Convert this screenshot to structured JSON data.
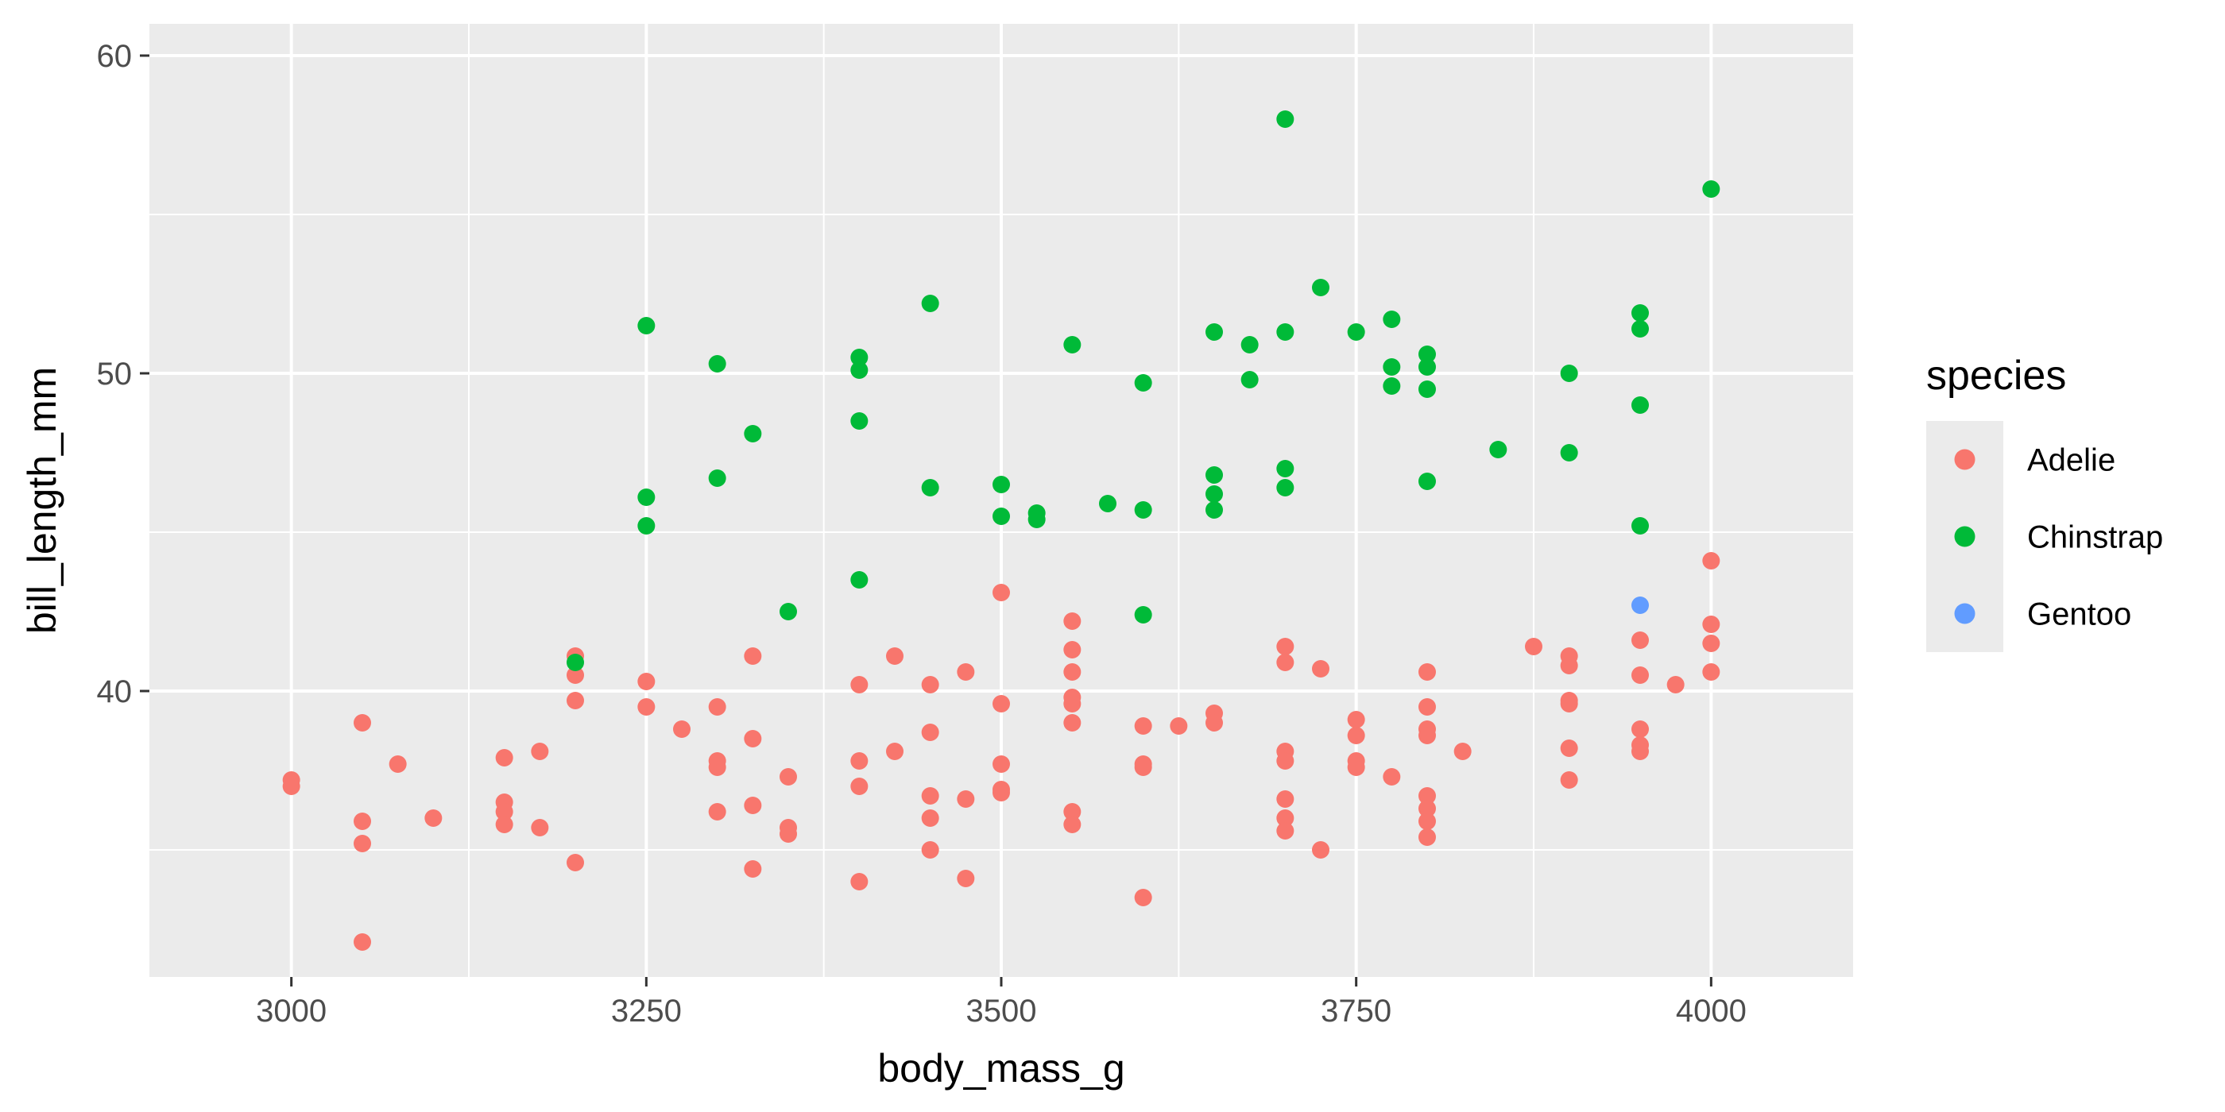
{
  "chart_data": {
    "type": "scatter",
    "title": "",
    "xlabel": "body_mass_g",
    "ylabel": "bill_length_mm",
    "xlim": [
      2900,
      4100
    ],
    "ylim": [
      31,
      61
    ],
    "x_ticks": [
      3000,
      3250,
      3500,
      3750,
      4000
    ],
    "y_ticks": [
      40,
      50,
      60
    ],
    "grid": true,
    "legend_title": "species",
    "legend_position": "right",
    "colors": {
      "Adelie": "#F8766D",
      "Chinstrap": "#00BA38",
      "Gentoo": "#619CFF",
      "panel": "#EBEBEB",
      "grid": "#FFFFFF"
    },
    "series": [
      {
        "name": "Adelie",
        "points": [
          [
            3000,
            37.2
          ],
          [
            3000,
            37.0
          ],
          [
            3050,
            39.0
          ],
          [
            3050,
            35.9
          ],
          [
            3050,
            35.2
          ],
          [
            3050,
            32.1
          ],
          [
            3075,
            37.7
          ],
          [
            3100,
            36.0
          ],
          [
            3150,
            37.9
          ],
          [
            3150,
            36.5
          ],
          [
            3150,
            36.2
          ],
          [
            3150,
            35.8
          ],
          [
            3175,
            38.1
          ],
          [
            3175,
            35.7
          ],
          [
            3200,
            41.1
          ],
          [
            3200,
            40.5
          ],
          [
            3200,
            39.7
          ],
          [
            3200,
            34.6
          ],
          [
            3250,
            40.3
          ],
          [
            3250,
            39.5
          ],
          [
            3275,
            38.8
          ],
          [
            3300,
            39.5
          ],
          [
            3300,
            37.8
          ],
          [
            3300,
            37.6
          ],
          [
            3300,
            36.2
          ],
          [
            3325,
            41.1
          ],
          [
            3325,
            38.5
          ],
          [
            3325,
            36.4
          ],
          [
            3325,
            34.4
          ],
          [
            3350,
            37.3
          ],
          [
            3350,
            35.7
          ],
          [
            3350,
            35.5
          ],
          [
            3400,
            40.2
          ],
          [
            3400,
            37.8
          ],
          [
            3400,
            37.0
          ],
          [
            3400,
            34.0
          ],
          [
            3425,
            41.1
          ],
          [
            3425,
            38.1
          ],
          [
            3450,
            40.2
          ],
          [
            3450,
            38.7
          ],
          [
            3450,
            36.7
          ],
          [
            3450,
            36.0
          ],
          [
            3450,
            35.0
          ],
          [
            3475,
            40.6
          ],
          [
            3475,
            36.6
          ],
          [
            3475,
            34.1
          ],
          [
            3500,
            43.1
          ],
          [
            3500,
            39.6
          ],
          [
            3500,
            37.7
          ],
          [
            3500,
            36.9
          ],
          [
            3500,
            36.8
          ],
          [
            3550,
            42.2
          ],
          [
            3550,
            41.3
          ],
          [
            3550,
            40.6
          ],
          [
            3550,
            39.8
          ],
          [
            3550,
            39.6
          ],
          [
            3550,
            39.0
          ],
          [
            3550,
            36.2
          ],
          [
            3550,
            35.8
          ],
          [
            3600,
            38.9
          ],
          [
            3600,
            37.7
          ],
          [
            3600,
            37.6
          ],
          [
            3600,
            33.5
          ],
          [
            3625,
            38.9
          ],
          [
            3650,
            39.3
          ],
          [
            3650,
            39.0
          ],
          [
            3700,
            41.4
          ],
          [
            3700,
            40.9
          ],
          [
            3700,
            38.1
          ],
          [
            3700,
            37.8
          ],
          [
            3700,
            36.6
          ],
          [
            3700,
            36.0
          ],
          [
            3700,
            35.6
          ],
          [
            3725,
            40.7
          ],
          [
            3725,
            35.0
          ],
          [
            3750,
            39.1
          ],
          [
            3750,
            38.6
          ],
          [
            3750,
            37.8
          ],
          [
            3750,
            37.6
          ],
          [
            3775,
            37.3
          ],
          [
            3800,
            40.6
          ],
          [
            3800,
            39.5
          ],
          [
            3800,
            38.8
          ],
          [
            3800,
            38.6
          ],
          [
            3800,
            36.7
          ],
          [
            3800,
            36.3
          ],
          [
            3800,
            35.9
          ],
          [
            3800,
            35.4
          ],
          [
            3825,
            38.1
          ],
          [
            3875,
            41.4
          ],
          [
            3900,
            41.1
          ],
          [
            3900,
            40.8
          ],
          [
            3900,
            39.7
          ],
          [
            3900,
            39.6
          ],
          [
            3900,
            38.2
          ],
          [
            3900,
            37.2
          ],
          [
            3950,
            41.6
          ],
          [
            3950,
            40.5
          ],
          [
            3950,
            38.8
          ],
          [
            3950,
            38.3
          ],
          [
            3950,
            38.1
          ],
          [
            3975,
            40.2
          ],
          [
            4000,
            44.1
          ],
          [
            4000,
            42.1
          ],
          [
            4000,
            41.5
          ],
          [
            4000,
            40.6
          ]
        ]
      },
      {
        "name": "Chinstrap",
        "points": [
          [
            3200,
            40.9
          ],
          [
            3250,
            51.5
          ],
          [
            3250,
            46.1
          ],
          [
            3250,
            45.2
          ],
          [
            3300,
            50.3
          ],
          [
            3300,
            46.7
          ],
          [
            3325,
            48.1
          ],
          [
            3350,
            42.5
          ],
          [
            3400,
            50.5
          ],
          [
            3400,
            50.1
          ],
          [
            3400,
            48.5
          ],
          [
            3400,
            43.5
          ],
          [
            3450,
            52.2
          ],
          [
            3450,
            46.4
          ],
          [
            3500,
            46.5
          ],
          [
            3500,
            45.5
          ],
          [
            3525,
            45.6
          ],
          [
            3525,
            45.4
          ],
          [
            3550,
            50.9
          ],
          [
            3575,
            45.9
          ],
          [
            3600,
            49.7
          ],
          [
            3600,
            45.7
          ],
          [
            3600,
            42.4
          ],
          [
            3650,
            51.3
          ],
          [
            3650,
            46.8
          ],
          [
            3650,
            46.2
          ],
          [
            3650,
            45.7
          ],
          [
            3675,
            50.9
          ],
          [
            3675,
            49.8
          ],
          [
            3700,
            58.0
          ],
          [
            3700,
            51.3
          ],
          [
            3700,
            47.0
          ],
          [
            3700,
            46.4
          ],
          [
            3725,
            52.7
          ],
          [
            3750,
            51.3
          ],
          [
            3775,
            51.7
          ],
          [
            3775,
            50.2
          ],
          [
            3775,
            49.6
          ],
          [
            3800,
            50.6
          ],
          [
            3800,
            50.2
          ],
          [
            3800,
            49.5
          ],
          [
            3800,
            46.6
          ],
          [
            3850,
            47.6
          ],
          [
            3900,
            50.0
          ],
          [
            3900,
            47.5
          ],
          [
            3950,
            51.9
          ],
          [
            3950,
            51.4
          ],
          [
            3950,
            49.0
          ],
          [
            3950,
            45.2
          ],
          [
            4000,
            55.8
          ]
        ]
      },
      {
        "name": "Gentoo",
        "points": [
          [
            3950,
            42.7
          ]
        ]
      }
    ]
  }
}
